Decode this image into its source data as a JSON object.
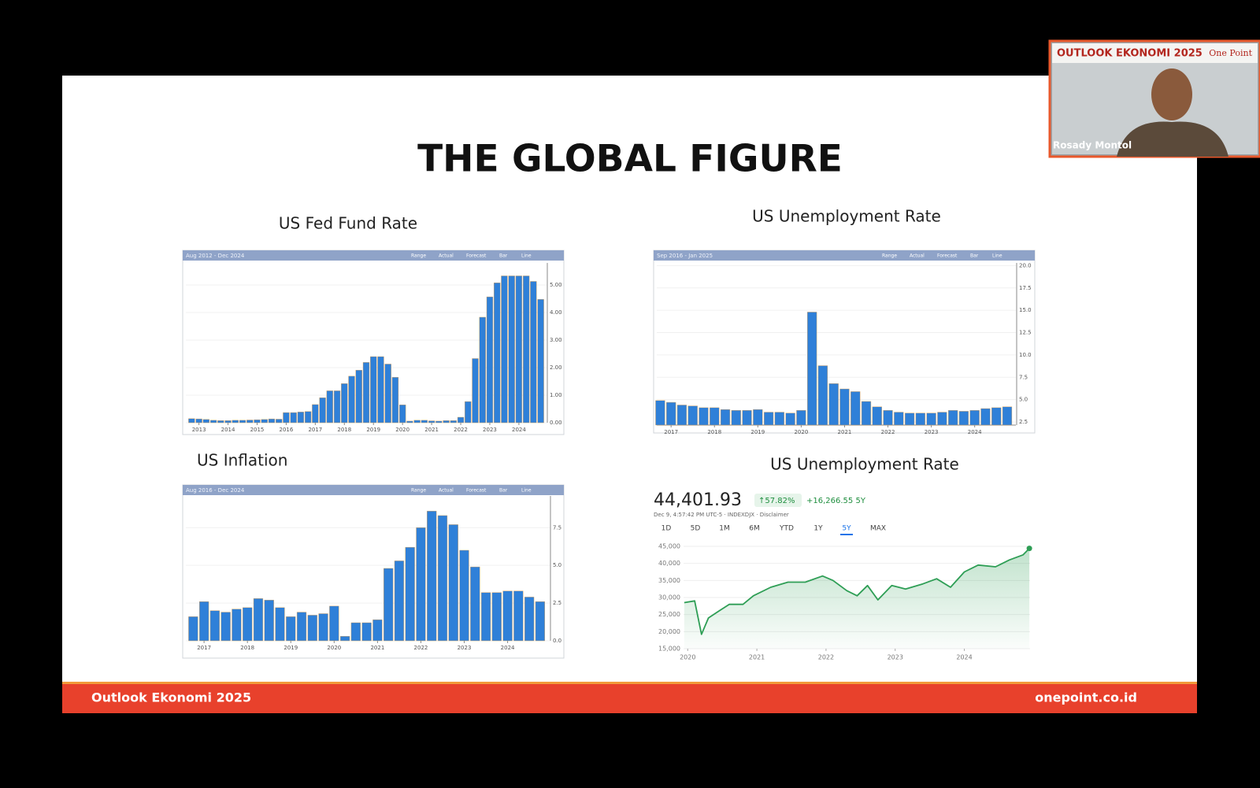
{
  "slide": {
    "title": "THE GLOBAL FIGURE",
    "footer_left": "Outlook Ekonomi 2025",
    "footer_right": "onepoint.co.id"
  },
  "video": {
    "banner": "OUTLOOK EKONOMI 2025",
    "brand": "One Point",
    "speaker": "Rosady Montol"
  },
  "toolbar": [
    "Range",
    "Actual",
    "Forecast",
    "Bar",
    "Line"
  ],
  "chart_data": [
    {
      "type": "bar",
      "title": "US Fed Fund Rate",
      "date_range": "Aug 2012 - Dec 2024",
      "color": "#2f80d8",
      "x": [
        2012.75,
        2013,
        2013.25,
        2013.5,
        2013.75,
        2014,
        2014.25,
        2014.5,
        2014.75,
        2015,
        2015.25,
        2015.5,
        2015.75,
        2016,
        2016.25,
        2016.5,
        2016.75,
        2017,
        2017.25,
        2017.5,
        2017.75,
        2018,
        2018.25,
        2018.5,
        2018.75,
        2019,
        2019.25,
        2019.5,
        2019.75,
        2020,
        2020.25,
        2020.5,
        2020.75,
        2021,
        2021.25,
        2021.5,
        2021.75,
        2022,
        2022.25,
        2022.5,
        2022.75,
        2023,
        2023.25,
        2023.5,
        2023.75,
        2024,
        2024.25,
        2024.5,
        2024.75
      ],
      "values": [
        0.15,
        0.14,
        0.12,
        0.09,
        0.08,
        0.08,
        0.09,
        0.09,
        0.1,
        0.11,
        0.12,
        0.14,
        0.13,
        0.37,
        0.37,
        0.39,
        0.41,
        0.66,
        0.91,
        1.16,
        1.16,
        1.42,
        1.69,
        1.91,
        2.19,
        2.4,
        2.4,
        2.13,
        1.65,
        0.65,
        0.06,
        0.09,
        0.09,
        0.07,
        0.06,
        0.08,
        0.08,
        0.2,
        0.77,
        2.33,
        3.83,
        4.57,
        5.08,
        5.33,
        5.33,
        5.33,
        5.33,
        5.13,
        4.48
      ],
      "xlim": [
        2012.55,
        2024.95
      ],
      "ylim": [
        0,
        5.8
      ],
      "xticks": [
        2013,
        2014,
        2015,
        2016,
        2017,
        2018,
        2019,
        2020,
        2021,
        2022,
        2023,
        2024
      ],
      "yticks": [
        {
          "value": 0,
          "label": "0.00"
        },
        {
          "value": 1,
          "label": "1.00"
        },
        {
          "value": 2,
          "label": "2.00"
        },
        {
          "value": 3,
          "label": "3.00"
        },
        {
          "value": 4,
          "label": "4.00"
        },
        {
          "value": 5,
          "label": "5.00"
        }
      ]
    },
    {
      "type": "bar",
      "title": "US Unemployment Rate",
      "date_range": "Sep 2016 - Jan 2025",
      "color": "#2f80d8",
      "x": [
        2016.75,
        2017,
        2017.25,
        2017.5,
        2017.75,
        2018,
        2018.25,
        2018.5,
        2018.75,
        2019,
        2019.25,
        2019.5,
        2019.75,
        2020,
        2020.25,
        2020.5,
        2020.75,
        2021,
        2021.25,
        2021.5,
        2021.75,
        2022,
        2022.25,
        2022.5,
        2022.75,
        2023,
        2023.25,
        2023.5,
        2023.75,
        2024,
        2024.25,
        2024.5,
        2024.75
      ],
      "values": [
        4.9,
        4.7,
        4.4,
        4.3,
        4.1,
        4.1,
        3.9,
        3.8,
        3.8,
        3.9,
        3.6,
        3.6,
        3.5,
        3.8,
        14.8,
        8.8,
        6.8,
        6.2,
        5.9,
        4.8,
        4.2,
        3.8,
        3.6,
        3.5,
        3.5,
        3.5,
        3.6,
        3.8,
        3.7,
        3.8,
        4.0,
        4.1,
        4.2
      ],
      "xlim": [
        2016.67,
        2024.95
      ],
      "ylim": [
        2.15,
        20.3
      ],
      "xticks": [
        2017,
        2018,
        2019,
        2020,
        2021,
        2022,
        2023,
        2024
      ],
      "yticks": [
        2.5,
        {
          "value": 5,
          "label": "5.0"
        },
        7.5,
        {
          "value": 10,
          "label": "10.0"
        },
        12.5,
        {
          "value": 15,
          "label": "15.0"
        },
        17.5,
        {
          "value": 20,
          "label": "20.0"
        }
      ]
    },
    {
      "type": "bar",
      "title": "US Inflation",
      "date_range": "Aug 2016 - Dec 2024",
      "color": "#2f80d8",
      "x": [
        2016.75,
        2017,
        2017.25,
        2017.5,
        2017.75,
        2018,
        2018.25,
        2018.5,
        2018.75,
        2019,
        2019.25,
        2019.5,
        2019.75,
        2020,
        2020.25,
        2020.5,
        2020.75,
        2021,
        2021.25,
        2021.5,
        2021.75,
        2022,
        2022.25,
        2022.5,
        2022.75,
        2023,
        2023.25,
        2023.5,
        2023.75,
        2024,
        2024.25,
        2024.5,
        2024.75
      ],
      "values": [
        1.6,
        2.6,
        2.0,
        1.9,
        2.1,
        2.2,
        2.8,
        2.7,
        2.2,
        1.6,
        1.9,
        1.7,
        1.8,
        2.3,
        0.3,
        1.2,
        1.2,
        1.4,
        4.8,
        5.3,
        6.2,
        7.5,
        8.6,
        8.3,
        7.7,
        6.0,
        4.9,
        3.2,
        3.2,
        3.3,
        3.3,
        2.9,
        2.6
      ],
      "xlim": [
        2016.58,
        2024.97
      ],
      "ylim": [
        0,
        9.6
      ],
      "xticks": [
        2017,
        2018,
        2019,
        2020,
        2021,
        2022,
        2023,
        2024
      ],
      "yticks": [
        {
          "value": 0,
          "label": "0.0"
        },
        2.5,
        {
          "value": 5,
          "label": "5.0"
        },
        7.5
      ]
    },
    {
      "type": "line",
      "title": "US Unemployment Rate",
      "price": "44,401.93",
      "change_pct": "↑57.82%",
      "change_abs": "+16,266.55 5Y",
      "timestamp": "Dec 9, 4:57:42 PM UTC-5 · INDEXDJX · Disclaimer",
      "ranges": [
        "1D",
        "5D",
        "1M",
        "6M",
        "YTD",
        "1Y",
        "5Y",
        "MAX"
      ],
      "selected_range": "5Y",
      "color": "#2e9e55",
      "x": [
        2019.95,
        2020.1,
        2020.2,
        2020.3,
        2020.45,
        2020.6,
        2020.8,
        2020.95,
        2021.2,
        2021.45,
        2021.7,
        2021.95,
        2022.1,
        2022.3,
        2022.45,
        2022.6,
        2022.75,
        2022.95,
        2023.15,
        2023.4,
        2023.6,
        2023.8,
        2024.0,
        2024.2,
        2024.45,
        2024.65,
        2024.85,
        2024.94
      ],
      "values": [
        28500,
        29000,
        19200,
        24000,
        26000,
        28000,
        28000,
        30500,
        33000,
        34500,
        34500,
        36300,
        35000,
        32000,
        30500,
        33500,
        29300,
        33500,
        32500,
        34000,
        35500,
        33000,
        37500,
        39500,
        39000,
        41000,
        42500,
        44401.93
      ],
      "xlim": [
        2019.94,
        2024.95
      ],
      "ylim": [
        15000,
        45000
      ],
      "xticks": [
        2020,
        2021,
        2022,
        2023,
        2024
      ],
      "yticks": [
        {
          "value": 15000,
          "label": "15,000"
        },
        {
          "value": 20000,
          "label": "20,000"
        },
        {
          "value": 25000,
          "label": "25,000"
        },
        {
          "value": 30000,
          "label": "30,000"
        },
        {
          "value": 35000,
          "label": "35,000"
        },
        {
          "value": 40000,
          "label": "40,000"
        },
        {
          "value": 45000,
          "label": "45,000"
        }
      ]
    }
  ]
}
